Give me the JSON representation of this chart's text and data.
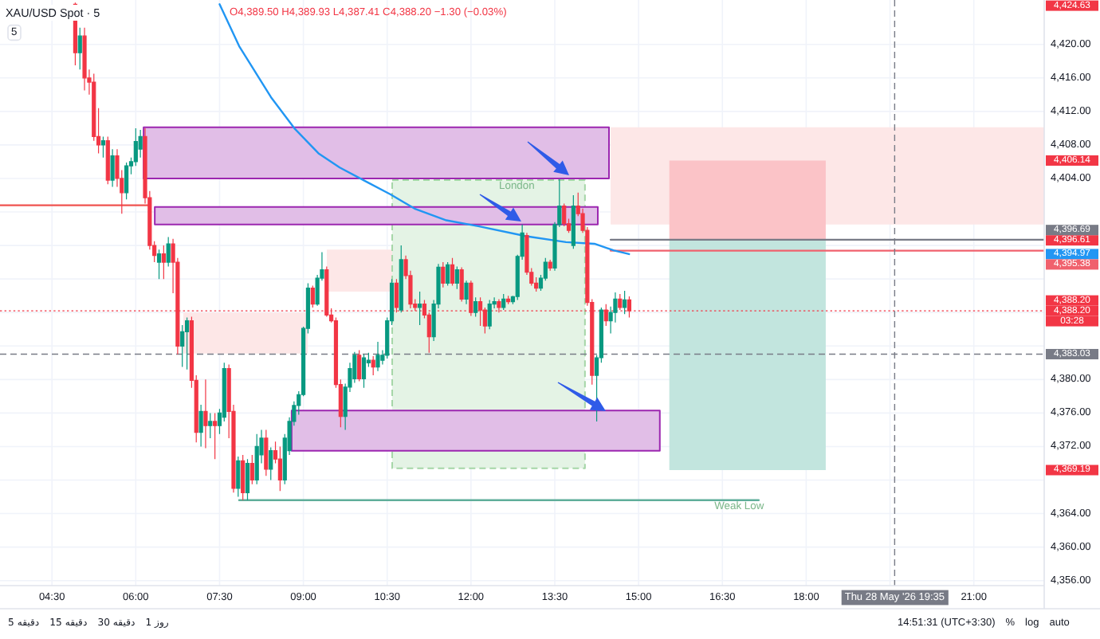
{
  "chart_data": {
    "type": "candlestick",
    "title": "XAU/USD Spot · 5",
    "subtitle": "O4,389.50 H4,389.93 L4,387.41 C4,388.20 −1.30 (−0.03%)",
    "x": [
      4.917,
      5.0,
      5.083,
      5.167,
      5.25,
      5.333,
      5.417,
      5.5,
      5.583,
      5.667,
      5.75,
      5.833,
      5.917,
      6.0,
      6.083,
      6.167,
      6.25,
      6.333,
      6.417,
      6.5,
      6.583,
      6.667,
      6.75,
      6.833,
      6.917,
      7.0,
      7.083,
      7.167,
      7.25,
      7.333,
      7.417,
      7.5,
      7.583,
      7.667,
      7.75,
      7.833,
      7.917,
      8.0,
      8.083,
      8.167,
      8.25,
      8.333,
      8.417,
      8.5,
      8.583,
      8.667,
      8.75,
      8.833,
      8.917,
      9.0,
      9.083,
      9.167,
      9.25,
      9.333,
      9.417,
      9.5,
      9.583,
      9.667,
      9.75,
      9.833,
      9.917,
      10.0,
      10.083,
      10.167,
      10.25,
      10.333,
      10.417,
      10.5,
      10.583,
      10.667,
      10.75,
      10.833,
      10.917,
      11.0,
      11.083,
      11.167,
      11.25,
      11.333,
      11.417,
      11.5,
      11.583,
      11.667,
      11.75,
      11.833,
      11.917,
      12.0,
      12.083,
      12.167,
      12.25,
      12.333,
      12.417,
      12.5,
      12.583,
      12.667,
      12.75,
      12.833,
      12.917,
      13.0,
      13.083,
      13.167,
      13.25,
      13.333,
      13.417,
      13.5,
      13.583,
      13.667,
      13.75,
      13.833,
      13.917,
      14.0,
      14.083,
      14.167,
      14.25,
      14.333,
      14.417,
      14.5,
      14.583,
      14.667,
      14.75,
      14.833
    ],
    "ohlc": [
      [
        4424.8,
        4425.0,
        4417.5,
        4419.0
      ],
      [
        4419.0,
        4422.0,
        4417.0,
        4421.0
      ],
      [
        4421.0,
        4422.0,
        4414.5,
        4416.0
      ],
      [
        4416.0,
        4417.0,
        4414.0,
        4415.5
      ],
      [
        4415.5,
        4416.5,
        4408.5,
        4409.0
      ],
      [
        4409.0,
        4412.4,
        4407.0,
        4408.0
      ],
      [
        4408.0,
        4409.0,
        4406.5,
        4408.5
      ],
      [
        4408.5,
        4409.0,
        4403.3,
        4403.8
      ],
      [
        4403.8,
        4407.5,
        4403.0,
        4406.7
      ],
      [
        4406.7,
        4407.5,
        4403.0,
        4404.0
      ],
      [
        4404.0,
        4405.0,
        4399.8,
        4402.3
      ],
      [
        4402.3,
        4405.9,
        4401.5,
        4405.5
      ],
      [
        4405.5,
        4406.5,
        4404.5,
        4406.0
      ],
      [
        4406.0,
        4410.0,
        4405.5,
        4408.4
      ],
      [
        4407.5,
        4409.8,
        4406.5,
        4409.0
      ],
      [
        4409.0,
        4410.0,
        4401.0,
        4401.7
      ],
      [
        4401.7,
        4402.5,
        4395.5,
        4396.0
      ],
      [
        4396.0,
        4396.5,
        4394.0,
        4394.8
      ],
      [
        4394.0,
        4395.5,
        4392.0,
        4395.0
      ],
      [
        4395.0,
        4396.0,
        4392.0,
        4394.0
      ],
      [
        4394.0,
        4397.0,
        4393.5,
        4396.2
      ],
      [
        4396.2,
        4396.8,
        4390.3,
        4394.0
      ],
      [
        4394.0,
        4394.5,
        4383.0,
        4384.0
      ],
      [
        4384.0,
        4386.5,
        4381.5,
        4385.7
      ],
      [
        4385.7,
        4387.4,
        4381.2,
        4387.0
      ],
      [
        4387.0,
        4387.5,
        4379.0,
        4379.9
      ],
      [
        4379.9,
        4380.5,
        4372.5,
        4373.7
      ],
      [
        4373.7,
        4377.0,
        4372.0,
        4376.2
      ],
      [
        4376.2,
        4380.0,
        4371.8,
        4374.5
      ],
      [
        4374.5,
        4376.0,
        4373.0,
        4375.0
      ],
      [
        4375.0,
        4376.0,
        4370.5,
        4374.5
      ],
      [
        4374.5,
        4376.5,
        4373.5,
        4376.0
      ],
      [
        4375.5,
        4382.0,
        4375.0,
        4381.3
      ],
      [
        4381.3,
        4381.8,
        4373.0,
        4376.2
      ],
      [
        4376.2,
        4377.0,
        4366.5,
        4367.0
      ],
      [
        4367.0,
        4370.8,
        4366.0,
        4370.3
      ],
      [
        4370.3,
        4371.0,
        4365.6,
        4366.5
      ],
      [
        4366.5,
        4370.5,
        4365.6,
        4370.0
      ],
      [
        4370.0,
        4371.0,
        4367.5,
        4368.0
      ],
      [
        4368.0,
        4373.5,
        4367.5,
        4372.0
      ],
      [
        4371.0,
        4374.0,
        4370.0,
        4373.0
      ],
      [
        4373.0,
        4374.0,
        4368.5,
        4369.3
      ],
      [
        4369.3,
        4371.9,
        4368.0,
        4371.5
      ],
      [
        4371.5,
        4372.6,
        4370.0,
        4370.5
      ],
      [
        4370.5,
        4372.0,
        4366.7,
        4368.0
      ],
      [
        4368.0,
        4373.5,
        4367.5,
        4373.0
      ],
      [
        4371.5,
        4375.5,
        4371.0,
        4375.0
      ],
      [
        4375.0,
        4377.4,
        4374.5,
        4376.9
      ],
      [
        4376.9,
        4378.6,
        4375.8,
        4378.2
      ],
      [
        4378.2,
        4386.3,
        4378.0,
        4386.1
      ],
      [
        4386.1,
        4391.5,
        4385.5,
        4390.9
      ],
      [
        4390.9,
        4391.2,
        4388.6,
        4389.0
      ],
      [
        4389.0,
        4392.5,
        4388.8,
        4392.1
      ],
      [
        4392.1,
        4395.2,
        4391.8,
        4393.1
      ],
      [
        4393.1,
        4393.5,
        4387.5,
        4387.7
      ],
      [
        4387.7,
        4388.5,
        4386.8,
        4387.0
      ],
      [
        4387.0,
        4387.4,
        4379.0,
        4379.4
      ],
      [
        4379.4,
        4380.0,
        4374.3,
        4375.6
      ],
      [
        4375.6,
        4379.5,
        4374.0,
        4379.1
      ],
      [
        4379.1,
        4382.0,
        4378.5,
        4381.3
      ],
      [
        4380.1,
        4383.3,
        4379.6,
        4382.9
      ],
      [
        4382.9,
        4383.5,
        4379.8,
        4380.1
      ],
      [
        4380.1,
        4383.0,
        4379.0,
        4382.6
      ],
      [
        4382.0,
        4383.2,
        4381.5,
        4382.3
      ],
      [
        4382.3,
        4382.8,
        4380.5,
        4381.5
      ],
      [
        4381.5,
        4384.5,
        4381.0,
        4382.9
      ],
      [
        4382.3,
        4383.5,
        4381.8,
        4382.9
      ],
      [
        4382.9,
        4387.4,
        4382.5,
        4387.0
      ],
      [
        4387.0,
        4392.0,
        4386.5,
        4391.5
      ],
      [
        4391.5,
        4392.0,
        4388.0,
        4388.6
      ],
      [
        4388.3,
        4396.0,
        4388.0,
        4394.3
      ],
      [
        4394.3,
        4394.8,
        4392.0,
        4392.4
      ],
      [
        4392.4,
        4393.0,
        4388.5,
        4389.0
      ],
      [
        4389.0,
        4389.6,
        4388.2,
        4388.6
      ],
      [
        4388.6,
        4390.5,
        4386.5,
        4389.0
      ],
      [
        4389.0,
        4389.5,
        4387.3,
        4387.7
      ],
      [
        4387.7,
        4388.0,
        4383.2,
        4385.1
      ],
      [
        4385.1,
        4389.5,
        4384.6,
        4389.0
      ],
      [
        4389.0,
        4393.8,
        4388.5,
        4393.4
      ],
      [
        4393.4,
        4394.0,
        4391.0,
        4391.5
      ],
      [
        4391.5,
        4394.0,
        4391.2,
        4393.7
      ],
      [
        4393.7,
        4394.5,
        4391.2,
        4391.5
      ],
      [
        4391.5,
        4393.5,
        4390.8,
        4393.1
      ],
      [
        4393.1,
        4393.4,
        4389.3,
        4389.6
      ],
      [
        4389.6,
        4391.8,
        4389.0,
        4391.5
      ],
      [
        4391.5,
        4391.8,
        4387.6,
        4388.0
      ],
      [
        4388.0,
        4389.8,
        4387.5,
        4389.3
      ],
      [
        4389.3,
        4389.8,
        4386.4,
        4388.3
      ],
      [
        4388.3,
        4388.6,
        4385.5,
        4386.4
      ],
      [
        4386.4,
        4389.5,
        4386.0,
        4389.0
      ],
      [
        4389.0,
        4389.8,
        4388.5,
        4389.3
      ],
      [
        4389.3,
        4389.6,
        4388.0,
        4388.6
      ],
      [
        4388.6,
        4390.2,
        4388.3,
        4389.6
      ],
      [
        4389.6,
        4390.0,
        4389.0,
        4389.3
      ],
      [
        4389.3,
        4390.0,
        4389.0,
        4389.9
      ],
      [
        4389.9,
        4394.9,
        4389.5,
        4394.7
      ],
      [
        4394.7,
        4398.5,
        4394.3,
        4397.5
      ],
      [
        4397.2,
        4397.5,
        4392.5,
        4392.8
      ],
      [
        4392.8,
        4393.3,
        4391.2,
        4391.5
      ],
      [
        4391.5,
        4392.2,
        4390.5,
        4390.9
      ],
      [
        4390.9,
        4392.5,
        4390.6,
        4392.1
      ],
      [
        4392.1,
        4394.5,
        4391.8,
        4394.0
      ],
      [
        4394.0,
        4394.3,
        4393.0,
        4393.3
      ],
      [
        4393.3,
        4398.8,
        4393.0,
        4398.5
      ],
      [
        4398.5,
        4403.9,
        4398.2,
        4400.7
      ],
      [
        4400.7,
        4401.0,
        4398.3,
        4398.6
      ],
      [
        4398.6,
        4399.2,
        4397.5,
        4397.8
      ],
      [
        4396.0,
        4402.0,
        4395.6,
        4400.7
      ],
      [
        4400.7,
        4402.3,
        4399.5,
        4399.8
      ],
      [
        4399.8,
        4400.4,
        4397.5,
        4397.8
      ],
      [
        4397.8,
        4398.2,
        4388.8,
        4389.2
      ],
      [
        4389.2,
        4389.6,
        4379.4,
        4380.5
      ],
      [
        4380.5,
        4382.9,
        4375.0,
        4382.6
      ],
      [
        4382.6,
        4388.6,
        4382.0,
        4388.3
      ],
      [
        4388.3,
        4389.0,
        4386.4,
        4387.0
      ],
      [
        4387.0,
        4388.7,
        4385.5,
        4388.0
      ],
      [
        4388.0,
        4390.4,
        4386.8,
        4389.6
      ],
      [
        4389.6,
        4390.2,
        4388.3,
        4388.6
      ],
      [
        4388.6,
        4390.6,
        4387.8,
        4389.5
      ],
      [
        4389.5,
        4389.93,
        4387.41,
        4388.2
      ]
    ],
    "colors": [
      "#f23645",
      "#089981",
      "#f23645",
      "#f23645",
      "#f23645",
      "#f23645",
      "#089981",
      "#f23645",
      "#089981",
      "#f23645",
      "#f23645",
      "#089981",
      "#089981",
      "#089981",
      "#089981",
      "#f23645",
      "#f23645",
      "#f23645",
      "#089981",
      "#f23645",
      "#089981",
      "#f23645",
      "#f23645",
      "#089981",
      "#089981",
      "#f23645",
      "#f23645",
      "#089981",
      "#f23645",
      "#089981",
      "#f23645",
      "#089981",
      "#089981",
      "#f23645",
      "#f23645",
      "#089981",
      "#f23645",
      "#089981",
      "#f23645",
      "#089981",
      "#089981",
      "#f23645",
      "#089981",
      "#f23645",
      "#f23645",
      "#089981",
      "#089981",
      "#089981",
      "#089981",
      "#089981",
      "#089981",
      "#f23645",
      "#089981",
      "#089981",
      "#f23645",
      "#f23645",
      "#f23645",
      "#f23645",
      "#089981",
      "#089981",
      "#089981",
      "#f23645",
      "#089981",
      "#089981",
      "#f23645",
      "#089981",
      "#089981",
      "#089981",
      "#089981",
      "#f23645",
      "#089981",
      "#f23645",
      "#f23645",
      "#f23645",
      "#089981",
      "#f23645",
      "#f23645",
      "#089981",
      "#089981",
      "#f23645",
      "#089981",
      "#f23645",
      "#089981",
      "#f23645",
      "#089981",
      "#f23645",
      "#089981",
      "#f23645",
      "#f23645",
      "#089981",
      "#089981",
      "#f23645",
      "#089981",
      "#f23645",
      "#089981",
      "#089981",
      "#089981",
      "#f23645",
      "#f23645",
      "#f23645",
      "#089981",
      "#089981",
      "#f23645",
      "#089981",
      "#089981",
      "#f23645",
      "#f23645",
      "#089981",
      "#f23645",
      "#f23645",
      "#f23645",
      "#f23645",
      "#089981",
      "#089981",
      "#f23645",
      "#089981",
      "#089981",
      "#f23645",
      "#089981",
      "#f23645"
    ],
    "series": [
      {
        "type": "area",
        "color": "#fde7e7",
        "x": [
          14.5,
          22.26,
          22.26,
          14.5,
          14.5
        ],
        "values": [
          4410.1,
          4410.1,
          4398.5,
          4398.5,
          4410.1
        ]
      },
      {
        "type": "area",
        "color": "#fde7e7",
        "x": [
          6.85,
          9.08,
          9.08,
          6.85,
          6.85
        ],
        "values": [
          4388.0,
          4388.0,
          4383.1,
          4383.1,
          4388.0
        ]
      },
      {
        "type": "area",
        "color": "#fde7e7",
        "x": [
          9.42,
          10.59,
          10.59,
          9.42,
          9.42
        ],
        "values": [
          4395.5,
          4395.5,
          4390.5,
          4390.5,
          4395.5
        ]
      },
      {
        "type": "area",
        "color": "#a5d6a7",
        "x": [
          10.59,
          14.04,
          14.04,
          10.59,
          10.59
        ],
        "values": [
          4403.8,
          4403.8,
          4369.4,
          4369.4,
          4403.8
        ],
        "line_style": "dashed"
      },
      {
        "type": "area",
        "color": "#9c27b0",
        "x": [
          6.14,
          14.47,
          14.47,
          6.14,
          6.14
        ],
        "values": [
          4410.1,
          4410.1,
          4404.0,
          4404.0,
          4410.1
        ],
        "line_style": "solid"
      },
      {
        "type": "area",
        "color": "#9c27b0",
        "x": [
          6.34,
          14.27,
          14.27,
          6.34,
          6.34
        ],
        "values": [
          4400.6,
          4400.6,
          4398.5,
          4398.5,
          4400.6
        ],
        "line_style": "solid"
      },
      {
        "type": "area",
        "color": "#9c27b0",
        "x": [
          8.79,
          15.38,
          15.38,
          8.79,
          8.79
        ],
        "values": [
          4376.3,
          4376.3,
          4371.5,
          4371.5,
          4376.3
        ],
        "line_style": "solid"
      },
      {
        "type": "area",
        "color": "#fbc3c7",
        "x": [
          15.55,
          18.35,
          18.35,
          15.55,
          15.55
        ],
        "values": [
          4406.14,
          4406.14,
          4396.61,
          4396.61,
          4406.14
        ]
      },
      {
        "type": "area",
        "color": "#c2e5de",
        "x": [
          15.55,
          18.35,
          18.35,
          15.55,
          15.55
        ],
        "values": [
          4396.61,
          4396.61,
          4369.19,
          4369.19,
          4396.61
        ]
      },
      {
        "type": "line",
        "color": "#ef5350",
        "x": [
          3.57,
          6.22
        ],
        "values": [
          4400.8,
          4400.8
        ]
      },
      {
        "type": "line",
        "color": "#5fae9a",
        "x": [
          7.85,
          17.15
        ],
        "values": [
          4365.6,
          4365.6
        ]
      },
      {
        "type": "line",
        "color": "#787b86",
        "x": [
          14.5,
          22.26
        ],
        "values": [
          4396.69,
          4396.69
        ]
      },
      {
        "type": "line",
        "color": "#f0616d",
        "x": [
          14.5,
          22.26
        ],
        "values": [
          4395.38,
          4395.38
        ]
      },
      {
        "type": "line",
        "color": "#2196f3",
        "x": [
          7.5,
          7.85,
          8.42,
          8.85,
          9.27,
          9.65,
          10.13,
          10.56,
          10.99,
          11.56,
          12.13,
          12.99,
          13.7,
          14.21,
          14.56,
          14.83
        ],
        "values": [
          4424.8,
          4419.8,
          4413.7,
          4409.9,
          4407.0,
          4405.3,
          4403.6,
          4402.1,
          4400.4,
          4399.0,
          4398.3,
          4397.1,
          4396.4,
          4396.2,
          4395.4,
          4394.97
        ]
      }
    ],
    "xlim": [
      3.57,
      22.26
    ],
    "ylim": [
      4355.4,
      4425.3
    ],
    "y2lim": [
      4355.4,
      4425.3
    ],
    "xticks": [
      {
        "value": 4.5,
        "label": "04:30"
      },
      {
        "value": 6,
        "label": "06:00"
      },
      {
        "value": 7.5,
        "label": "07:30"
      },
      {
        "value": 9,
        "label": "09:00"
      },
      {
        "value": 10.5,
        "label": "10:30"
      },
      {
        "value": 12,
        "label": "12:00"
      },
      {
        "value": 13.5,
        "label": "13:30"
      },
      {
        "value": 15,
        "label": "15:00"
      },
      {
        "value": 16.5,
        "label": "16:30"
      },
      {
        "value": 18,
        "label": "18:00"
      },
      {
        "value": 19.5,
        "label": null
      },
      {
        "value": 21,
        "label": "21:00"
      }
    ],
    "yticks": [
      {
        "value": 4356,
        "label": "4,356.00"
      },
      {
        "value": 4360,
        "label": "4,360.00"
      },
      {
        "value": 4364,
        "label": "4,364.00"
      },
      {
        "value": 4368,
        "label": null
      },
      {
        "value": 4372,
        "label": "4,372.00"
      },
      {
        "value": 4376,
        "label": "4,376.00"
      },
      {
        "value": 4380,
        "label": "4,380.00"
      },
      {
        "value": 4384,
        "label": null
      },
      {
        "value": 4388,
        "label": null
      },
      {
        "value": 4392,
        "label": null
      },
      {
        "value": 4396,
        "label": null
      },
      {
        "value": 4400,
        "label": null
      },
      {
        "value": 4404,
        "label": "4,404.00"
      },
      {
        "value": 4408,
        "label": "4,408.00"
      },
      {
        "value": 4412,
        "label": "4,412.00"
      },
      {
        "value": 4416,
        "label": "4,416.00"
      },
      {
        "value": 4420,
        "label": "4,420.00"
      }
    ],
    "y2ticks": [
      {
        "value": 4424.63,
        "label": "4,424.63"
      },
      {
        "value": 4406.14,
        "label": "4,406.14"
      },
      {
        "value": 4396.61,
        "label": "4,396.61"
      },
      {
        "value": 4394.97,
        "label": "4,394.97"
      },
      {
        "value": 4369.19,
        "label": "4,369.19"
      }
    ],
    "grid": true,
    "ref_lines": [
      {
        "axis": "y",
        "value": 4388.2,
        "label": "4,388.20",
        "color": "#f23645",
        "line_style": "dotted"
      },
      {
        "axis": "y",
        "value": 4383.03,
        "label": "4,383.03",
        "color": "#787b86",
        "line_style": "dashed"
      },
      {
        "axis": "x",
        "value": 19.5833,
        "color": "#787b86",
        "line_style": "dashed"
      }
    ],
    "annotations": [
      "5",
      "03:28",
      "Thu 28 May '26 19:35",
      {
        "text": "London",
        "x": 12.82,
        "y": 4403.8
      },
      {
        "text": "Weak Low",
        "x": 16.8,
        "y": 4365.6
      },
      {
        "text": "4,396.69",
        "x": 22.26,
        "y": 4396.69
      },
      {
        "text": "4,395.38",
        "x": 22.26,
        "y": 4395.38
      },
      {
        "text": "4,388.20",
        "x": 22.26,
        "y": 4388.2
      },
      "5 دقیقه",
      "15 دقیقه",
      "30 دقیقه",
      "1 روز",
      "14:51:31 (UTC+3:30)",
      "%",
      "log",
      "auto"
    ]
  }
}
